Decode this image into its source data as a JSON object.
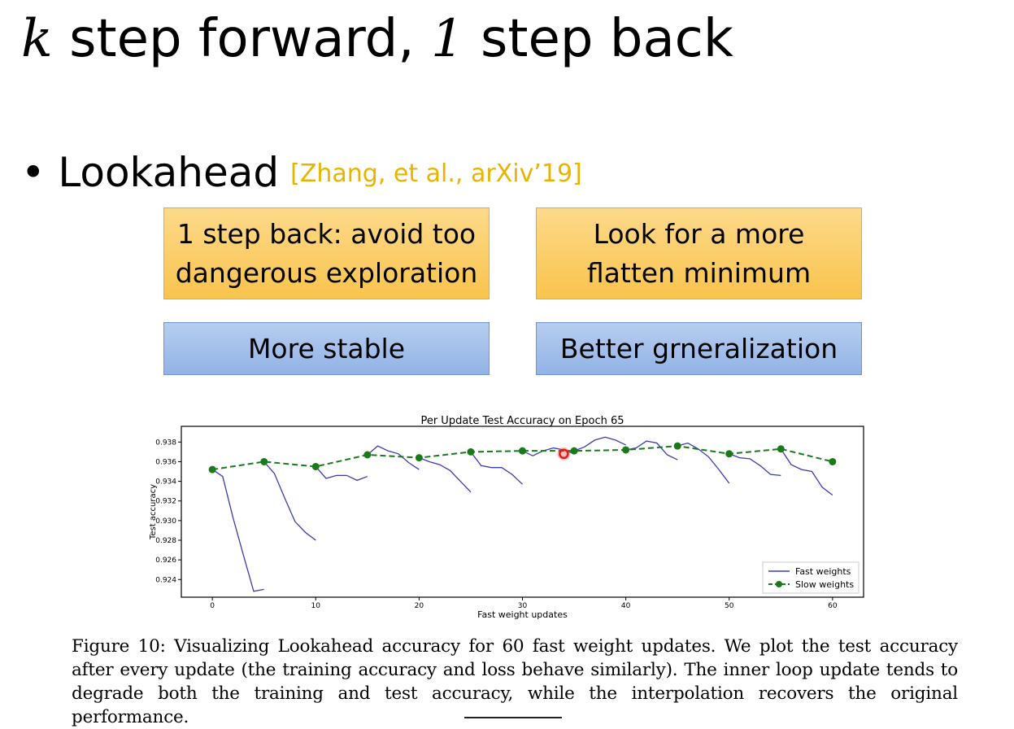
{
  "slide": {
    "title_k": "k",
    "title_mid": " step forward, ",
    "title_1": "1",
    "title_end": " step back",
    "bullet": "Lookahead",
    "reference": "[Zhang, et al., arXiv’19]",
    "box_back_line1": "1 step back: avoid too",
    "box_back_line2": "dangerous exploration",
    "box_look_line1": "Look for a more",
    "box_look_line2": "flatten minimum",
    "box_stable": "More stable",
    "box_general": "Better grneralization",
    "caption": "Figure 10: Visualizing Lookahead accuracy for 60 fast weight updates. We plot the test accuracy after every update (the training accuracy and loss behave similarly). The inner loop update tends to degrade both the training and test accuracy, while the interpolation recovers the original performance.",
    "colors": {
      "orange_box": "#f9c44d",
      "blue_box": "#92b3e6",
      "reference": "#e8b400",
      "fast": "#3b3bb3",
      "slow": "#1a7a1a"
    }
  },
  "chart_data": {
    "type": "line",
    "title": "Per Update Test Accuracy on Epoch 65",
    "xlabel": "Fast weight updates",
    "ylabel": "Test accuracy",
    "xlim": [
      -3,
      63
    ],
    "ylim": [
      0.9222,
      0.9396
    ],
    "xticks": [
      0,
      10,
      20,
      30,
      40,
      50,
      60
    ],
    "yticks": [
      0.924,
      0.926,
      0.928,
      0.93,
      0.932,
      0.934,
      0.936,
      0.938
    ],
    "legend_position": "bottom-right",
    "series": [
      {
        "name": "Fast weights",
        "style": "solid",
        "segments": [
          [
            [
              0,
              0.9352
            ],
            [
              1,
              0.9345
            ],
            [
              2,
              0.9303
            ],
            [
              3,
              0.9265
            ],
            [
              4,
              0.9228
            ],
            [
              5,
              0.923
            ]
          ],
          [
            [
              5,
              0.936
            ],
            [
              6,
              0.9348
            ],
            [
              7,
              0.9323
            ],
            [
              8,
              0.9299
            ],
            [
              9,
              0.9288
            ],
            [
              10,
              0.928
            ]
          ],
          [
            [
              10,
              0.9355
            ],
            [
              11,
              0.9343
            ],
            [
              12,
              0.9346
            ],
            [
              13,
              0.9346
            ],
            [
              14,
              0.9341
            ],
            [
              15,
              0.9345
            ]
          ],
          [
            [
              15,
              0.9367
            ],
            [
              16,
              0.9376
            ],
            [
              17,
              0.9371
            ],
            [
              18,
              0.9368
            ],
            [
              19,
              0.9359
            ],
            [
              20,
              0.9352
            ]
          ],
          [
            [
              20,
              0.9364
            ],
            [
              21,
              0.936
            ],
            [
              22,
              0.9357
            ],
            [
              23,
              0.9351
            ],
            [
              24,
              0.934
            ],
            [
              25,
              0.9329
            ]
          ],
          [
            [
              25,
              0.937
            ],
            [
              26,
              0.9356
            ],
            [
              27,
              0.9354
            ],
            [
              28,
              0.9354
            ],
            [
              29,
              0.9347
            ],
            [
              30,
              0.9337
            ]
          ],
          [
            [
              30,
              0.9371
            ],
            [
              31,
              0.9366
            ],
            [
              32,
              0.9371
            ],
            [
              33,
              0.9374
            ],
            [
              34,
              0.9372
            ],
            [
              35,
              0.9368
            ]
          ],
          [
            [
              35,
              0.9371
            ],
            [
              36,
              0.9375
            ],
            [
              37,
              0.9382
            ],
            [
              38,
              0.9385
            ],
            [
              39,
              0.9382
            ],
            [
              40,
              0.9377
            ]
          ],
          [
            [
              40,
              0.9372
            ],
            [
              41,
              0.9374
            ],
            [
              42,
              0.9381
            ],
            [
              43,
              0.9379
            ],
            [
              44,
              0.9367
            ],
            [
              45,
              0.9362
            ]
          ],
          [
            [
              45,
              0.9376
            ],
            [
              46,
              0.9379
            ],
            [
              47,
              0.9373
            ],
            [
              48,
              0.9365
            ],
            [
              49,
              0.9352
            ],
            [
              50,
              0.9338
            ]
          ],
          [
            [
              50,
              0.9368
            ],
            [
              51,
              0.9364
            ],
            [
              52,
              0.9363
            ],
            [
              53,
              0.9356
            ],
            [
              54,
              0.9347
            ],
            [
              55,
              0.9346
            ]
          ],
          [
            [
              55,
              0.9373
            ],
            [
              56,
              0.9357
            ],
            [
              57,
              0.9352
            ],
            [
              58,
              0.935
            ],
            [
              59,
              0.9334
            ],
            [
              60,
              0.9326
            ]
          ]
        ]
      },
      {
        "name": "Slow weights",
        "style": "dashed-marker",
        "points": [
          [
            0,
            0.9352
          ],
          [
            5,
            0.936
          ],
          [
            10,
            0.9355
          ],
          [
            15,
            0.9367
          ],
          [
            20,
            0.9364
          ],
          [
            25,
            0.937
          ],
          [
            30,
            0.9371
          ],
          [
            35,
            0.9371
          ],
          [
            40,
            0.9372
          ],
          [
            45,
            0.9376
          ],
          [
            50,
            0.9368
          ],
          [
            55,
            0.9373
          ],
          [
            60,
            0.936
          ]
        ]
      }
    ],
    "cursor": {
      "x": 34,
      "y": 0.9368
    }
  }
}
